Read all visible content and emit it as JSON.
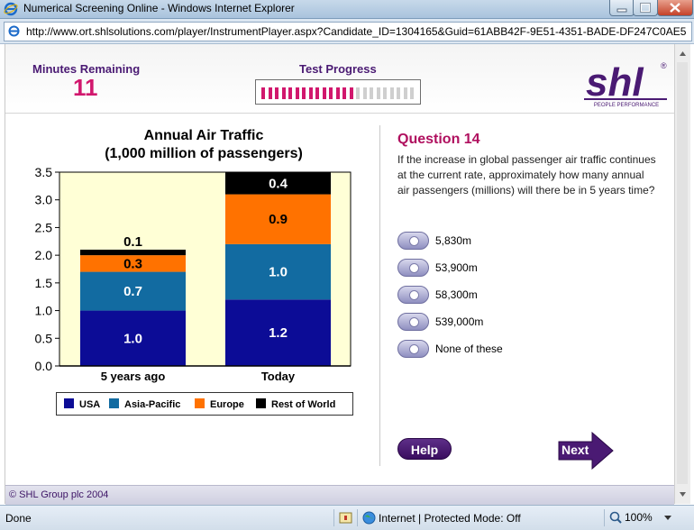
{
  "window": {
    "title": "Numerical Screening Online - Windows Internet Explorer"
  },
  "address_bar": {
    "url": "http://www.ort.shlsolutions.com/player/InstrumentPlayer.aspx?Candidate_ID=1304165&Guid=61ABB42F-9E51-4351-BADE-DF247C0AE5"
  },
  "header": {
    "timer_label": "Minutes Remaining",
    "timer_value": "11",
    "progress_label": "Test Progress",
    "progress": {
      "completed": 14,
      "total": 23,
      "filled_color": "#d1176d",
      "empty_color": "#cfcfcf"
    },
    "logo": {
      "text": "shl",
      "tagline": "PEOPLE PERFORMANCE",
      "mark": "®"
    }
  },
  "chart_data": {
    "type": "bar",
    "stacked": true,
    "title_line1": "Annual Air Traffic",
    "title_line2": "(1,000 million of passengers)",
    "categories": [
      "5 years ago",
      "Today"
    ],
    "series": [
      {
        "name": "USA",
        "color": "#0c0c96",
        "values": [
          1.0,
          1.2
        ]
      },
      {
        "name": "Asia-Pacific",
        "color": "#126ba1",
        "values": [
          0.7,
          1.0
        ]
      },
      {
        "name": "Europe",
        "color": "#ff7200",
        "values": [
          0.3,
          0.9
        ]
      },
      {
        "name": "Rest of World",
        "color": "#000000",
        "values": [
          0.1,
          0.4
        ]
      }
    ],
    "value_labels": [
      [
        "1.0",
        "0.7",
        "0.3",
        "0.1"
      ],
      [
        "1.2",
        "1.0",
        "0.9",
        "0.4"
      ]
    ],
    "ylim": [
      0,
      3.5
    ],
    "yticks": [
      "0.0",
      "0.5",
      "1.0",
      "1.5",
      "2.0",
      "2.5",
      "3.0",
      "3.5"
    ],
    "plot_background": "#ffffd6",
    "legend_position": "bottom"
  },
  "question": {
    "title": "Question 14",
    "text": "If the increase in global passenger air traffic continues at the current rate, approximately how many annual air passengers (millions) will there be in 5 years time?",
    "options": [
      "5,830m",
      "53,900m",
      "58,300m",
      "539,000m",
      "None of these"
    ]
  },
  "buttons": {
    "help": "Help",
    "next": "Next"
  },
  "footer": {
    "copyright": "© SHL Group plc 2004"
  },
  "statusbar": {
    "status": "Done",
    "zone": "Internet | Protected Mode: Off",
    "zoom": "100%"
  }
}
